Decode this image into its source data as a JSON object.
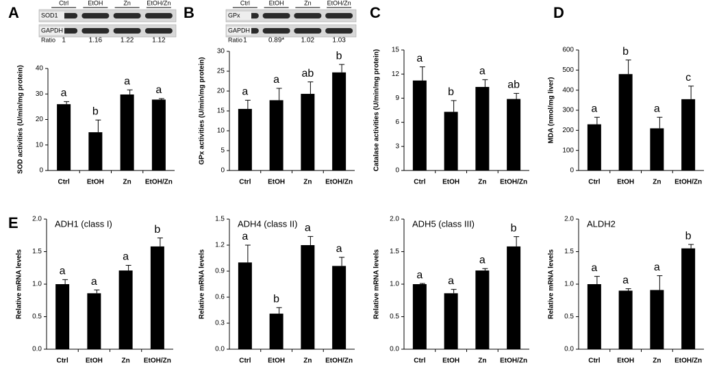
{
  "chart_data": [
    {
      "type": "bar",
      "panel": "A",
      "ylabel": "SOD activities (U/min/mg protein)",
      "color": "#000000",
      "categories": [
        "Ctrl",
        "EtOH",
        "Zn",
        "EtOH/Zn"
      ],
      "values": [
        26,
        15,
        29.8,
        27.8
      ],
      "errors": [
        1,
        4.8,
        1.8,
        0.4
      ],
      "annotations": [
        "a",
        "b",
        "a",
        "a"
      ],
      "ylim": [
        0,
        40
      ],
      "yticks": [
        0,
        10,
        20,
        30,
        40
      ],
      "blot": {
        "lanes": [
          "Ctrl",
          "EtOH",
          "Zn",
          "EtOH/Zn"
        ],
        "rows": [
          "SOD1",
          "GAPDH"
        ],
        "ratio_label": "Ratio",
        "ratios": [
          1,
          1.16,
          1.22,
          1.12
        ]
      }
    },
    {
      "type": "bar",
      "panel": "B",
      "ylabel": "GPx activities (U/min/mg protein)",
      "color": "#000000",
      "categories": [
        "Ctrl",
        "EtOH",
        "Zn",
        "EtOH/Zn"
      ],
      "values": [
        15.5,
        17.7,
        19.3,
        24.7
      ],
      "errors": [
        2.2,
        3,
        3,
        2
      ],
      "annotations": [
        "a",
        "a",
        "ab",
        "b"
      ],
      "ylim": [
        0,
        30
      ],
      "yticks": [
        0,
        5,
        10,
        15,
        20,
        25,
        30
      ],
      "blot": {
        "lanes": [
          "Ctrl",
          "EtOH",
          "Zn",
          "EtOH/Zn"
        ],
        "rows": [
          "GPx",
          "GAPDH"
        ],
        "ratio_label": "Ratio",
        "ratios": [
          1,
          0.89,
          1.02,
          1.03
        ],
        "ratio_labels": [
          "1",
          "0.89*",
          "1.02",
          "1.03"
        ]
      }
    },
    {
      "type": "bar",
      "panel": "C",
      "ylabel": "Catalase activities (U/min/mg protein)",
      "color": "#000000",
      "categories": [
        "Ctrl",
        "EtOH",
        "Zn",
        "EtOH/Zn"
      ],
      "values": [
        11.2,
        7.3,
        10.4,
        8.9
      ],
      "errors": [
        1.7,
        1.4,
        0.9,
        0.7
      ],
      "annotations": [
        "a",
        "b",
        "a",
        "ab"
      ],
      "ylim": [
        0,
        15
      ],
      "yticks": [
        0,
        3,
        6,
        9,
        12,
        15
      ]
    },
    {
      "type": "bar",
      "panel": "D",
      "ylabel": "MDA (nmol/mg liver)",
      "color": "#000000",
      "categories": [
        "Ctrl",
        "EtOH",
        "Zn",
        "EtOH/Zn"
      ],
      "values": [
        230,
        480,
        210,
        355
      ],
      "errors": [
        35,
        70,
        55,
        65
      ],
      "annotations": [
        "a",
        "b",
        "a",
        "c"
      ],
      "ylim": [
        0,
        600
      ],
      "yticks": [
        0,
        100,
        200,
        300,
        400,
        500,
        600
      ]
    },
    {
      "type": "bar",
      "panel": "E",
      "title": "ADH1 (class I)",
      "ylabel": "Relative mRNA levels",
      "color": "#000000",
      "categories": [
        "Ctrl",
        "EtOH",
        "Zn",
        "EtOH/Zn"
      ],
      "values": [
        1.0,
        0.86,
        1.21,
        1.58
      ],
      "errors": [
        0.07,
        0.05,
        0.08,
        0.13
      ],
      "annotations": [
        "a",
        "a",
        "a",
        "b"
      ],
      "ylim": [
        0,
        2
      ],
      "yticks": [
        {
          "value": 0,
          "label": "0.0"
        },
        0.5,
        {
          "value": 1,
          "label": "1.0"
        },
        1.5,
        {
          "value": 2,
          "label": "2.0"
        }
      ]
    },
    {
      "type": "bar",
      "title": "ADH4 (class II)",
      "ylabel": "Relative mRNA levels",
      "color": "#000000",
      "categories": [
        "Ctrl",
        "EtOH",
        "Zn",
        "EtOH/Zn"
      ],
      "values": [
        1.0,
        0.41,
        1.2,
        0.96
      ],
      "errors": [
        0.2,
        0.07,
        0.1,
        0.1
      ],
      "annotations": [
        "a",
        "b",
        "a",
        "a"
      ],
      "ylim": [
        0,
        1.5
      ],
      "yticks": [
        {
          "value": 0,
          "label": "0.0"
        },
        0.3,
        0.6,
        0.9,
        1.2,
        1.5
      ]
    },
    {
      "type": "bar",
      "title": "ADH5 (class III)",
      "ylabel": "Relative mRNA levels",
      "color": "#000000",
      "categories": [
        "Ctrl",
        "EtOH",
        "Zn",
        "EtOH/Zn"
      ],
      "values": [
        1.0,
        0.86,
        1.21,
        1.58
      ],
      "errors": [
        0.01,
        0.06,
        0.03,
        0.15
      ],
      "annotations": [
        "a",
        "a",
        "a",
        "b"
      ],
      "ylim": [
        0,
        2
      ],
      "yticks": [
        {
          "value": 0,
          "label": "0.0"
        },
        0.5,
        {
          "value": 1,
          "label": "1.0"
        },
        1.5,
        {
          "value": 2,
          "label": "2.0"
        }
      ]
    },
    {
      "type": "bar",
      "title": "ALDH2",
      "ylabel": "Relative mRNA levels",
      "color": "#000000",
      "categories": [
        "Ctrl",
        "EtOH",
        "Zn",
        "EtOH/Zn"
      ],
      "values": [
        1.0,
        0.9,
        0.91,
        1.55
      ],
      "errors": [
        0.12,
        0.03,
        0.22,
        0.06
      ],
      "annotations": [
        "a",
        "a",
        "a",
        "b"
      ],
      "ylim": [
        0,
        2
      ],
      "yticks": [
        {
          "value": 0,
          "label": "0.0"
        },
        0.5,
        {
          "value": 1,
          "label": "1.0"
        },
        1.5,
        {
          "value": 2,
          "label": "2.0"
        }
      ]
    }
  ]
}
